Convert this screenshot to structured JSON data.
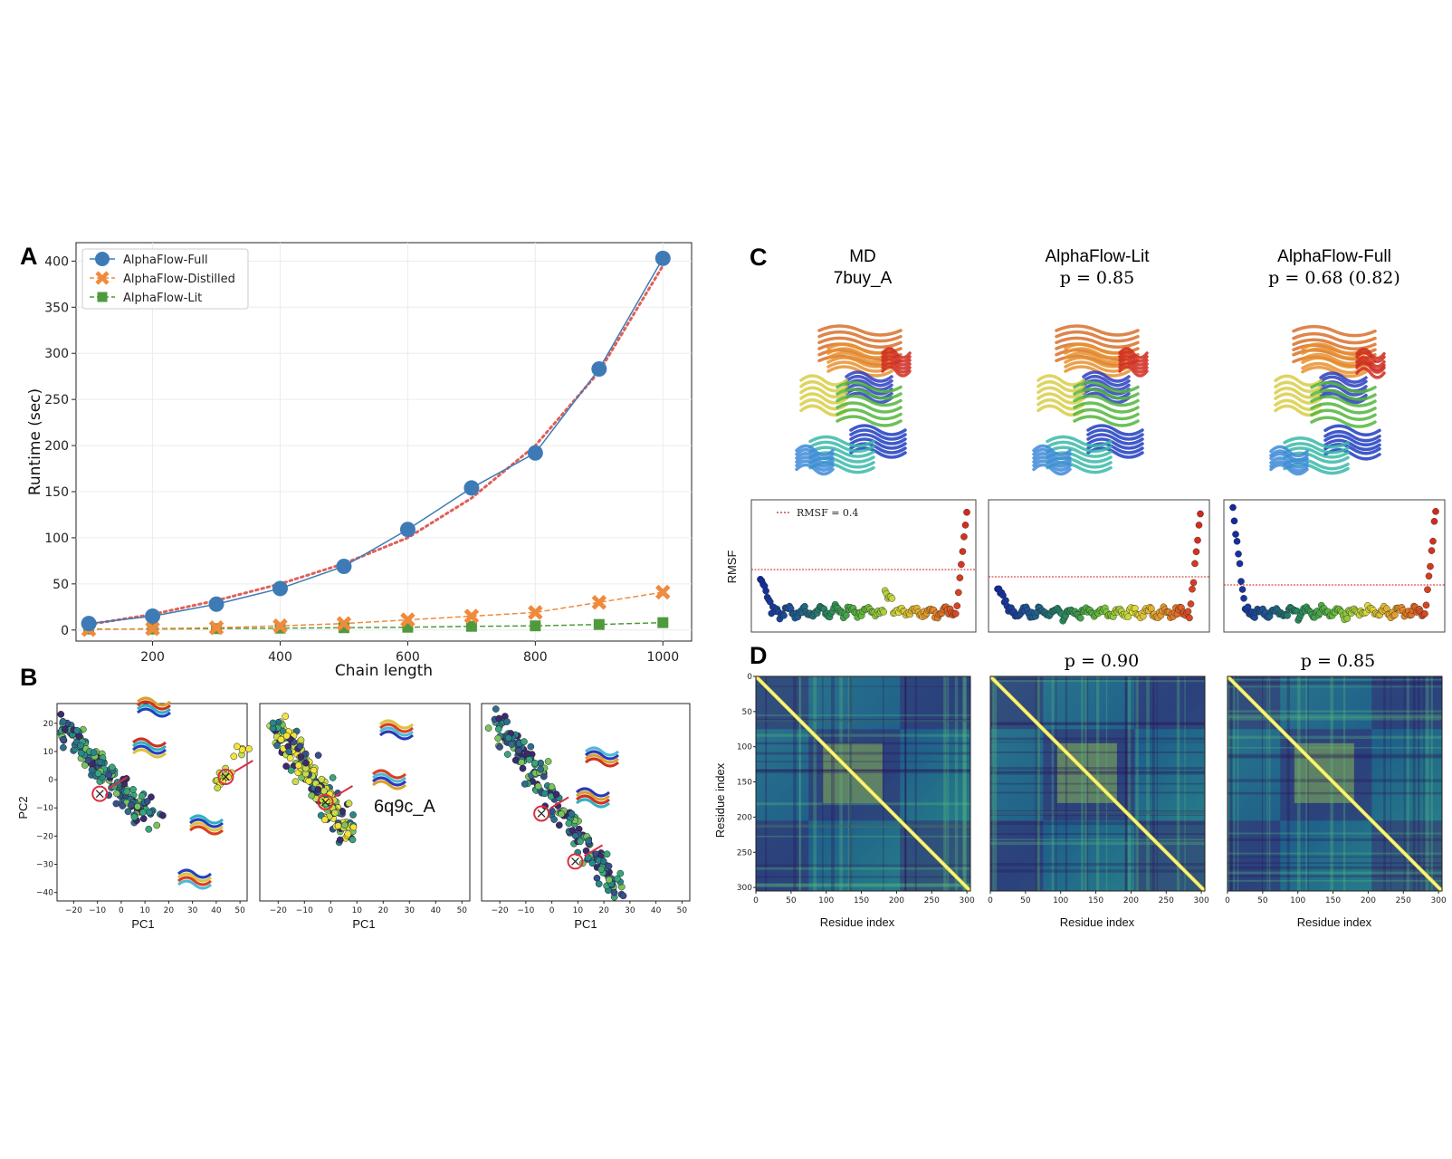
{
  "panels": {
    "A": "A",
    "B": "B",
    "C": "C",
    "D": "D"
  },
  "chart_data": [
    {
      "id": "A",
      "type": "line",
      "xlabel": "Chain length",
      "ylabel": "Runtime (sec)",
      "xlim": [
        80,
        1045
      ],
      "ylim": [
        -12,
        420
      ],
      "xticks": [
        200,
        400,
        600,
        800,
        1000
      ],
      "yticks": [
        0,
        50,
        100,
        150,
        200,
        250,
        300,
        350,
        400
      ],
      "grid": true,
      "legend_position": "top-left",
      "x": [
        100,
        200,
        300,
        400,
        500,
        600,
        700,
        800,
        900,
        1000
      ],
      "series": [
        {
          "name": "AlphaFlow-Full",
          "color": "#3e7bb6",
          "marker": "circle",
          "values": [
            7,
            15,
            28,
            45,
            69,
            109,
            154,
            192,
            283,
            403
          ]
        },
        {
          "name": "AlphaFlow-Distilled",
          "color": "#f08a3c",
          "marker": "x",
          "values": [
            0.5,
            1.5,
            2.5,
            4.5,
            7,
            11,
            15,
            19,
            30,
            41
          ]
        },
        {
          "name": "AlphaFlow-Lit",
          "color": "#4f9a3d",
          "marker": "square",
          "values": [
            1,
            1,
            1.5,
            2,
            2.5,
            3,
            4,
            4.5,
            6,
            8
          ]
        }
      ],
      "fit_curve": {
        "color": "#e0605a",
        "style": "dotted",
        "values": [
          6,
          17,
          32,
          50,
          72,
          100,
          143,
          200,
          280,
          395
        ]
      }
    },
    {
      "id": "B",
      "type": "scatter",
      "xlabel": "PC1",
      "ylabel": "PC2",
      "xlim": [
        -27,
        53
      ],
      "ylim": [
        -43,
        27
      ],
      "xticks": [
        -20,
        -10,
        0,
        10,
        20,
        30,
        40,
        50
      ],
      "xtick_labels": [
        "−20",
        "−10",
        "0",
        "10",
        "20",
        "30",
        "40",
        "50"
      ],
      "yticks": [
        20,
        10,
        0,
        -10,
        -20,
        -30,
        -40
      ],
      "ytick_labels": [
        "20",
        "10",
        "0",
        "−10",
        "−20",
        "−30",
        "−40"
      ],
      "annotation": "6q9c_A",
      "subplots": 3
    },
    {
      "id": "C",
      "type": "scatter",
      "ylabel": "RMSF",
      "threshold_label": "RMSF = 0.4",
      "columns": [
        {
          "title_line1": "MD",
          "title_line2": "7buy_A"
        },
        {
          "title_line1": "AlphaFlow-Lit",
          "title_line2": "p = 0.85"
        },
        {
          "title_line1": "AlphaFlow-Full",
          "title_line2": "p = 0.68 (0.82)"
        }
      ]
    },
    {
      "id": "D",
      "type": "heatmap",
      "xlabel": "Residue index",
      "ylabel": "Residue index",
      "ticks": [
        0,
        50,
        100,
        150,
        200,
        250,
        300
      ],
      "range": [
        0,
        305
      ],
      "columns": [
        {
          "title": ""
        },
        {
          "title": "p = 0.90"
        },
        {
          "title": "p = 0.85"
        }
      ]
    }
  ]
}
